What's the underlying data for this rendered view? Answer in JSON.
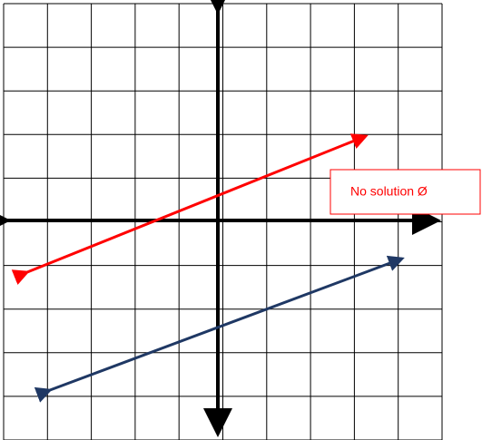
{
  "annotation": {
    "label": "No solution Ø"
  }
}
